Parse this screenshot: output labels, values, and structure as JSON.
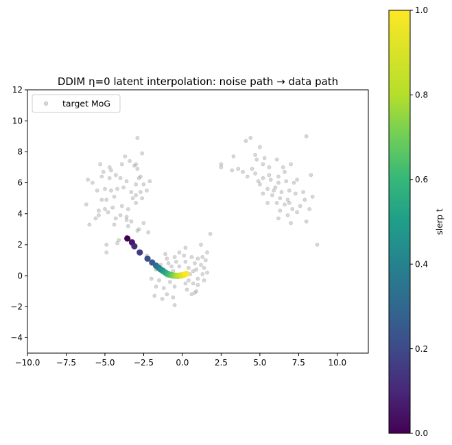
{
  "chart_data": {
    "type": "scatter",
    "title": "DDIM η=0 latent interpolation: noise path → data path",
    "xlabel": "",
    "ylabel": "",
    "xlim": [
      -10,
      12
    ],
    "ylim": [
      -5,
      12
    ],
    "xticks": [
      -10.0,
      -7.5,
      -5.0,
      -2.5,
      0.0,
      2.5,
      5.0,
      7.5,
      10.0
    ],
    "xtick_labels": [
      "−10.0",
      "−7.5",
      "−5.0",
      "−2.5",
      "0.0",
      "2.5",
      "5.0",
      "7.5",
      "10.0"
    ],
    "yticks": [
      -4,
      -2,
      0,
      2,
      4,
      6,
      8,
      10,
      12
    ],
    "ytick_labels": [
      "−4",
      "−2",
      "0",
      "2",
      "4",
      "6",
      "8",
      "10",
      "12"
    ],
    "grid": false,
    "legend": {
      "placement": "top-left",
      "entries": [
        "target MoG"
      ]
    },
    "colorbar": {
      "label": "slerp t",
      "range": [
        0.0,
        1.0
      ],
      "ticks": [
        0.0,
        0.2,
        0.4,
        0.6,
        0.8,
        1.0
      ],
      "tick_labels": [
        "0.0",
        "0.2",
        "0.4",
        "0.6",
        "0.8",
        "1.0"
      ],
      "colormap": "viridis"
    },
    "colors": {
      "samples": "#9a9a9a",
      "axes": "#000000"
    },
    "series": [
      {
        "name": "target MoG",
        "type": "scatter",
        "points": [
          [
            -5.3,
            7.2
          ],
          [
            -4.7,
            7.0
          ],
          [
            -4.3,
            6.5
          ],
          [
            -3.7,
            7.7
          ],
          [
            -3.4,
            7.4
          ],
          [
            -3.0,
            7.2
          ],
          [
            -2.6,
            7.9
          ],
          [
            -2.9,
            6.9
          ],
          [
            -4.0,
            6.3
          ],
          [
            -5.1,
            6.7
          ],
          [
            -5.8,
            6.0
          ],
          [
            -6.1,
            6.2
          ],
          [
            -5.0,
            5.6
          ],
          [
            -4.6,
            5.5
          ],
          [
            -4.2,
            5.6
          ],
          [
            -3.8,
            5.7
          ],
          [
            -3.3,
            5.4
          ],
          [
            -3.0,
            5.9
          ],
          [
            -2.5,
            5.9
          ],
          [
            -2.3,
            5.5
          ],
          [
            -2.1,
            6.1
          ],
          [
            -2.8,
            6.3
          ],
          [
            -3.6,
            6.1
          ],
          [
            -4.4,
            5.1
          ],
          [
            -4.9,
            4.9
          ],
          [
            -5.2,
            4.9
          ],
          [
            -5.0,
            4.3
          ],
          [
            -4.8,
            4.1
          ],
          [
            -4.5,
            4.4
          ],
          [
            -3.9,
            4.5
          ],
          [
            -3.5,
            4.3
          ],
          [
            -3.0,
            4.7
          ],
          [
            -2.6,
            5.0
          ],
          [
            -2.7,
            5.4
          ],
          [
            -3.2,
            5.0
          ],
          [
            -6.2,
            4.6
          ],
          [
            -5.4,
            4.2
          ],
          [
            -5.4,
            3.9
          ],
          [
            -5.6,
            3.7
          ],
          [
            -6.0,
            3.3
          ],
          [
            -4.3,
            3.7
          ],
          [
            -4.0,
            3.9
          ],
          [
            -3.6,
            3.8
          ],
          [
            -3.3,
            3.5
          ],
          [
            -3.5,
            3.2
          ],
          [
            -2.8,
            3.0
          ],
          [
            -2.9,
            2.9
          ],
          [
            -4.1,
            2.3
          ],
          [
            -4.9,
            2.0
          ],
          [
            -4.9,
            1.5
          ],
          [
            -5.2,
            6.4
          ],
          [
            -4.6,
            6.8
          ],
          [
            -3.9,
            7.2
          ],
          [
            -2.7,
            6.4
          ],
          [
            -3.6,
            3.6
          ],
          [
            -4.4,
            3.3
          ],
          [
            -2.2,
            2.8
          ],
          [
            -4.2,
            2.1
          ],
          [
            -3.6,
            2.5
          ],
          [
            -2.5,
            3.4
          ],
          [
            -2.9,
            8.9
          ],
          [
            -3.1,
            7.1
          ],
          [
            -4.7,
            6.3
          ],
          [
            -5.5,
            5.5
          ],
          [
            -3.0,
            5.2
          ],
          [
            -1.0,
            1.1
          ],
          [
            -0.5,
            1.2
          ],
          [
            0.1,
            1.3
          ],
          [
            0.6,
            1.2
          ],
          [
            1.0,
            1.1
          ],
          [
            1.3,
            1.2
          ],
          [
            1.5,
            1.0
          ],
          [
            -1.4,
            0.7
          ],
          [
            -0.9,
            0.8
          ],
          [
            -0.4,
            0.9
          ],
          [
            0.2,
            0.9
          ],
          [
            0.8,
            0.8
          ],
          [
            1.2,
            0.7
          ],
          [
            -1.7,
            0.4
          ],
          [
            -1.2,
            0.4
          ],
          [
            -0.6,
            0.3
          ],
          [
            0.4,
            0.5
          ],
          [
            0.9,
            0.4
          ],
          [
            1.4,
            0.5
          ],
          [
            -1.0,
            0.0
          ],
          [
            -0.3,
            -0.1
          ],
          [
            0.5,
            0.1
          ],
          [
            1.0,
            -0.2
          ],
          [
            1.3,
            0.1
          ],
          [
            -1.5,
            -0.3
          ],
          [
            -0.8,
            -0.4
          ],
          [
            0.2,
            -0.5
          ],
          [
            0.7,
            -0.5
          ],
          [
            -1.2,
            -0.8
          ],
          [
            -0.5,
            -0.7
          ],
          [
            0.3,
            -0.9
          ],
          [
            0.9,
            -1.0
          ],
          [
            -1.8,
            -1.3
          ],
          [
            -1.0,
            -1.2
          ],
          [
            0.6,
            -1.2
          ],
          [
            -0.6,
            -1.4
          ],
          [
            -1.3,
            -1.5
          ],
          [
            -0.5,
            -1.9
          ],
          [
            0.8,
            -1.1
          ],
          [
            1.0,
            -0.6
          ],
          [
            1.6,
            1.5
          ],
          [
            1.8,
            2.7
          ],
          [
            1.2,
            2.0
          ],
          [
            0.2,
            1.8
          ],
          [
            -0.2,
            1.5
          ],
          [
            -1.1,
            1.4
          ],
          [
            -2.3,
            1.3
          ],
          [
            -0.7,
            0.6
          ],
          [
            0.7,
            0.3
          ],
          [
            -2.0,
            -0.2
          ],
          [
            -1.7,
            -0.7
          ],
          [
            0.4,
            -0.3
          ],
          [
            1.4,
            -0.3
          ],
          [
            1.6,
            0.2
          ],
          [
            -0.2,
            0.6
          ],
          [
            3.3,
            7.7
          ],
          [
            3.6,
            6.9
          ],
          [
            3.9,
            6.7
          ],
          [
            4.5,
            6.9
          ],
          [
            4.8,
            7.5
          ],
          [
            5.3,
            7.6
          ],
          [
            5.6,
            7.0
          ],
          [
            6.1,
            7.5
          ],
          [
            6.5,
            7.0
          ],
          [
            7.0,
            7.2
          ],
          [
            4.2,
            6.4
          ],
          [
            4.7,
            6.6
          ],
          [
            5.2,
            6.3
          ],
          [
            5.7,
            6.2
          ],
          [
            6.2,
            6.4
          ],
          [
            6.7,
            6.1
          ],
          [
            7.2,
            6.0
          ],
          [
            7.4,
            6.2
          ],
          [
            5.0,
            5.9
          ],
          [
            5.5,
            5.6
          ],
          [
            6.0,
            5.7
          ],
          [
            6.4,
            5.4
          ],
          [
            6.9,
            5.5
          ],
          [
            7.3,
            5.3
          ],
          [
            5.2,
            5.3
          ],
          [
            5.8,
            5.2
          ],
          [
            6.3,
            5.0
          ],
          [
            6.8,
            4.9
          ],
          [
            7.6,
            4.5
          ],
          [
            5.5,
            4.7
          ],
          [
            6.1,
            4.7
          ],
          [
            6.6,
            4.6
          ],
          [
            7.1,
            4.3
          ],
          [
            6.3,
            4.2
          ],
          [
            6.8,
            3.9
          ],
          [
            7.4,
            4.1
          ],
          [
            8.2,
            4.3
          ],
          [
            8.4,
            5.1
          ],
          [
            8.3,
            6.5
          ],
          [
            7.0,
            3.4
          ],
          [
            6.2,
            3.7
          ],
          [
            8.0,
            3.5
          ],
          [
            8.7,
            2.0
          ],
          [
            8.0,
            9.0
          ],
          [
            4.4,
            8.9
          ],
          [
            4.1,
            8.7
          ],
          [
            5.0,
            8.3
          ],
          [
            4.7,
            7.8
          ],
          [
            5.2,
            7.2
          ],
          [
            4.9,
            6.1
          ],
          [
            6.6,
            6.7
          ],
          [
            3.2,
            6.8
          ],
          [
            2.5,
            7.2
          ],
          [
            2.5,
            7.0
          ],
          [
            5.9,
            5.5
          ],
          [
            6.2,
            6.0
          ],
          [
            6.9,
            4.7
          ],
          [
            5.6,
            6.5
          ],
          [
            7.8,
            5.4
          ],
          [
            7.9,
            4.9
          ]
        ]
      },
      {
        "name": "",
        "type": "path",
        "points": [
          [
            -3.55,
            2.4
          ],
          [
            -3.25,
            2.15
          ],
          [
            -3.1,
            1.9
          ],
          [
            -2.75,
            1.5
          ],
          [
            -2.25,
            1.1
          ],
          [
            -1.95,
            0.85
          ],
          [
            -1.7,
            0.65
          ],
          [
            -1.55,
            0.52
          ],
          [
            -1.4,
            0.4
          ],
          [
            -1.25,
            0.3
          ],
          [
            -1.1,
            0.2
          ],
          [
            -0.95,
            0.12
          ],
          [
            -0.8,
            0.06
          ],
          [
            -0.65,
            0.02
          ],
          [
            -0.5,
            0.0
          ],
          [
            -0.35,
            -0.01
          ],
          [
            -0.2,
            0.0
          ],
          [
            -0.05,
            0.02
          ],
          [
            0.1,
            0.06
          ],
          [
            0.25,
            0.12
          ]
        ],
        "t": [
          0.0,
          0.0526,
          0.1053,
          0.1579,
          0.2105,
          0.2632,
          0.3158,
          0.3684,
          0.4211,
          0.4737,
          0.5263,
          0.5789,
          0.6316,
          0.6842,
          0.7368,
          0.7895,
          0.8421,
          0.8947,
          0.9474,
          1.0
        ]
      }
    ]
  }
}
